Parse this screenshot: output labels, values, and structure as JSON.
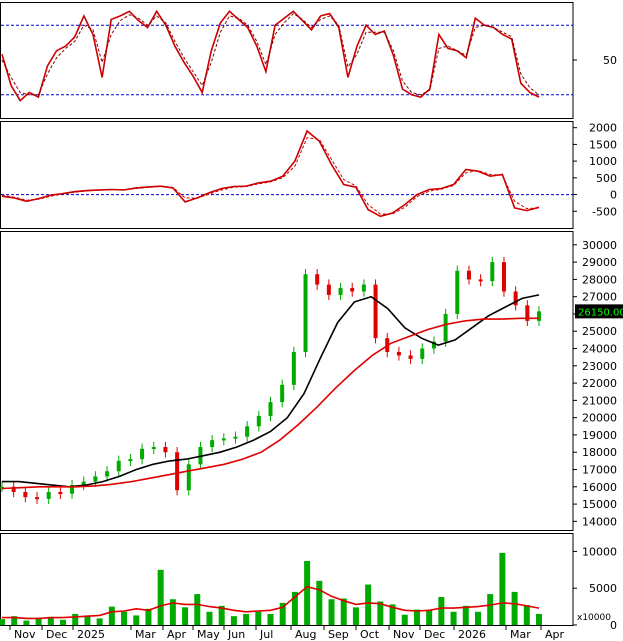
{
  "chart_data": [
    {
      "type": "line",
      "panel": "oscillator",
      "ylim": [
        0,
        100
      ],
      "y_ticks": [
        "50"
      ],
      "reference_lines": [
        80,
        20
      ],
      "series": [
        {
          "color": "#cc0000",
          "style": "solid",
          "values": [
            55,
            28,
            15,
            22,
            18,
            45,
            58,
            62,
            70,
            88,
            72,
            35,
            85,
            88,
            92,
            84,
            78,
            92,
            80,
            62,
            48,
            36,
            22,
            58,
            82,
            92,
            85,
            78,
            62,
            40,
            80,
            86,
            92,
            84,
            76,
            88,
            90,
            78,
            35,
            62,
            80,
            72,
            75,
            54,
            25,
            20,
            18,
            25,
            72,
            60,
            58,
            52,
            86,
            80,
            78,
            72,
            68,
            30,
            22,
            18
          ]
        },
        {
          "color": "#880000",
          "style": "dashed",
          "values": [
            50,
            35,
            22,
            20,
            20,
            38,
            52,
            60,
            66,
            80,
            76,
            48,
            72,
            84,
            89,
            86,
            80,
            88,
            82,
            66,
            52,
            40,
            28,
            48,
            74,
            88,
            86,
            80,
            66,
            46,
            72,
            82,
            90,
            85,
            78,
            85,
            88,
            80,
            44,
            55,
            74,
            74,
            74,
            58,
            32,
            22,
            20,
            24,
            60,
            62,
            58,
            54,
            78,
            80,
            78,
            74,
            70,
            38,
            26,
            20
          ]
        }
      ]
    },
    {
      "type": "line",
      "panel": "macd",
      "ylim": [
        -1000,
        2200
      ],
      "y_ticks": [
        "2000",
        "1500",
        "1000",
        "500",
        "0",
        "-500"
      ],
      "reference_lines": [
        0
      ],
      "series": [
        {
          "color": "#cc0000",
          "style": "solid",
          "values": [
            -50,
            -100,
            -200,
            -120,
            -20,
            30,
            90,
            120,
            140,
            150,
            140,
            200,
            230,
            250,
            200,
            -220,
            -100,
            60,
            180,
            240,
            250,
            350,
            400,
            550,
            1000,
            1900,
            1600,
            900,
            300,
            220,
            -450,
            -650,
            -550,
            -300,
            0,
            150,
            180,
            300,
            750,
            700,
            550,
            600,
            -400,
            -480,
            -380
          ]
        },
        {
          "color": "#cc0000",
          "style": "dashed",
          "values": [
            -20,
            -80,
            -170,
            -140,
            -50,
            20,
            70,
            110,
            130,
            145,
            140,
            180,
            215,
            240,
            215,
            -100,
            -110,
            20,
            140,
            220,
            240,
            320,
            380,
            500,
            850,
            1700,
            1650,
            1050,
            450,
            260,
            -300,
            -580,
            -580,
            -380,
            -60,
            100,
            160,
            270,
            650,
            720,
            600,
            580,
            -200,
            -420,
            -400
          ]
        }
      ]
    },
    {
      "type": "line",
      "panel": "price",
      "ylim": [
        13500,
        30800
      ],
      "y_ticks": [
        "30000",
        "29000",
        "28000",
        "27000",
        "26000",
        "25000",
        "24000",
        "23000",
        "22000",
        "21000",
        "20000",
        "19000",
        "18000",
        "17000",
        "16000",
        "15000",
        "14000"
      ],
      "price_label": "26150.00",
      "series": [
        {
          "name": "",
          "color": "#00aa00",
          "style": "close",
          "values": [
            16000,
            15700,
            15400,
            15300,
            15700,
            15600,
            16100,
            16300,
            16600,
            16900,
            17500,
            17600,
            18200,
            18300,
            18000,
            15800,
            17300,
            18300,
            18700,
            18800,
            18900,
            19500,
            20100,
            20900,
            21900,
            23800,
            28300,
            27700,
            27100,
            27500,
            27300,
            27700,
            24600,
            23800,
            23600,
            23400,
            24000,
            24400,
            26000,
            28500,
            28000,
            27900,
            29000,
            27300,
            26500,
            25600,
            26150
          ]
        },
        {
          "name": "",
          "color": "#000000",
          "style": "solid",
          "values": [
            16300,
            16300,
            16200,
            16100,
            16000,
            16100,
            16300,
            16600,
            17000,
            17300,
            17500,
            17600,
            17800,
            18000,
            18300,
            18700,
            19200,
            20000,
            21400,
            23500,
            25500,
            26700,
            27000,
            26300,
            25200,
            24600,
            24200,
            24500,
            25200,
            25900,
            26400,
            26900,
            27100
          ]
        },
        {
          "name": "",
          "color": "#e00000",
          "style": "solid",
          "values": [
            15900,
            15950,
            16000,
            16000,
            16000,
            16050,
            16150,
            16300,
            16500,
            16700,
            16900,
            17100,
            17300,
            17600,
            18000,
            18700,
            19600,
            20600,
            21700,
            22700,
            23600,
            24300,
            24700,
            25100,
            25400,
            25600,
            25700,
            25700,
            25750,
            25750
          ]
        }
      ]
    },
    {
      "type": "bar",
      "panel": "volume",
      "ylim": [
        0,
        12500
      ],
      "y_ticks": [
        "10000",
        "5000",
        "0"
      ],
      "unit_label": "x10000",
      "series": [
        {
          "name": "",
          "color": "#00aa00",
          "values": [
            800,
            1200,
            600,
            900,
            1100,
            700,
            1500,
            1300,
            900,
            2500,
            1800,
            1300,
            2200,
            7500,
            3500,
            2400,
            4200,
            1800,
            2600,
            1200,
            1500,
            1800,
            1500,
            3000,
            4500,
            8700,
            6000,
            3500,
            3600,
            2400,
            5500,
            3200,
            2800,
            1400,
            2100,
            2000,
            3800,
            1800,
            2600,
            1800,
            4200,
            9800,
            4500,
            2700,
            1500
          ]
        },
        {
          "name": "",
          "color": "#e00000",
          "style": "line",
          "values": [
            1000,
            1000,
            900,
            900,
            1000,
            1000,
            1100,
            1200,
            1300,
            1800,
            1900,
            2200,
            2000,
            2600,
            3000,
            2800,
            2800,
            2500,
            2300,
            2000,
            1800,
            1900,
            2000,
            2400,
            3800,
            5200,
            4800,
            3900,
            3300,
            2800,
            3000,
            2900,
            2400,
            2000,
            1900,
            2000,
            2300,
            2300,
            2400,
            2500,
            2700,
            3000,
            2900,
            2600,
            2300
          ]
        }
      ]
    }
  ],
  "x_axis": {
    "labels": [
      "Nov",
      "Dec",
      "2025",
      "Mar",
      "Apr",
      "May",
      "Jun",
      "Jul",
      "Aug",
      "Sep",
      "Oct",
      "Nov",
      "Dec",
      "2026",
      "Mar",
      "Apr"
    ]
  },
  "colors": {
    "up": "#00aa00",
    "down": "#e00000",
    "grid_ref": "#0000cc",
    "frame": "#000000"
  }
}
